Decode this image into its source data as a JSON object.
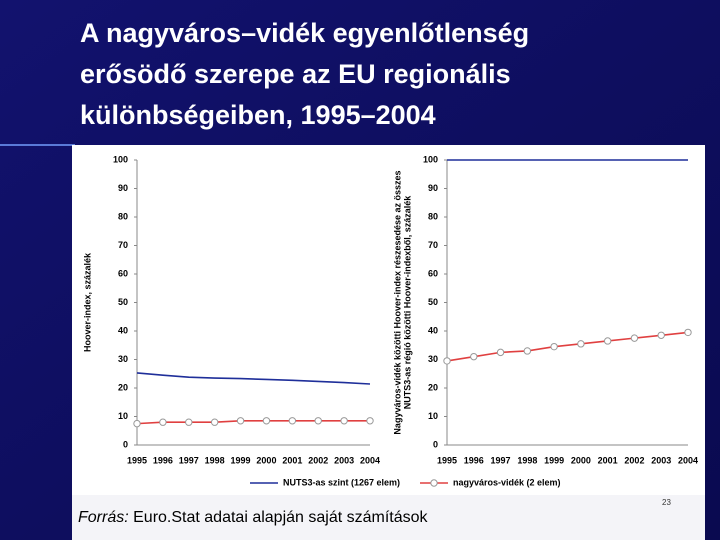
{
  "slide": {
    "title": [
      "A nagyváros–vidék egyenlőtlenség",
      "erősödő szerepe az EU regionális",
      "különbségeiben, 1995–2004"
    ],
    "source_label": "Forrás:",
    "source": "Euro.Stat adatai alapján saját számítások",
    "page": 23
  },
  "chart_data": [
    {
      "type": "line",
      "ylabel": "Hoover-index, százalék",
      "categories": [
        "1995",
        "1996",
        "1997",
        "1998",
        "1999",
        "2000",
        "2001",
        "2002",
        "2003",
        "2004"
      ],
      "series": [
        {
          "name": "NUTS3-as szint (1267 elem)",
          "color": "#1f2f9a",
          "values": [
            25.3,
            24.5,
            23.8,
            23.5,
            23.3,
            23,
            22.7,
            22.3,
            21.9,
            21.4
          ]
        },
        {
          "name": "nagyváros-vidék (2 elem)",
          "color": "#e04040",
          "values": [
            7.5,
            8,
            8,
            8,
            8.5,
            8.5,
            8.5,
            8.5,
            8.5,
            8.5
          ]
        }
      ],
      "ylim": [
        0,
        100
      ],
      "yticks": [
        0,
        10,
        20,
        30,
        40,
        50,
        60,
        70,
        80,
        90,
        100
      ]
    },
    {
      "type": "line",
      "ylabel": [
        "Nagyváros-vidék közötti Hoover-index részesedése az összes",
        "NUTS3-as régió közötti Hoover-indexből, százalék"
      ],
      "categories": [
        "1995",
        "1996",
        "1997",
        "1998",
        "1999",
        "2000",
        "2001",
        "2002",
        "2003",
        "2004"
      ],
      "series": [
        {
          "color": "#1f2f9a",
          "values": [
            100,
            100,
            100,
            100,
            100,
            100,
            100,
            100,
            100,
            100
          ]
        },
        {
          "color": "#e04040",
          "values": [
            29.5,
            31,
            32.5,
            33,
            34.5,
            35.5,
            36.5,
            37.5,
            38.5,
            39.5
          ]
        }
      ],
      "ylim": [
        0,
        100
      ],
      "yticks": [
        0,
        10,
        20,
        30,
        40,
        50,
        60,
        70,
        80,
        90,
        100
      ]
    }
  ]
}
